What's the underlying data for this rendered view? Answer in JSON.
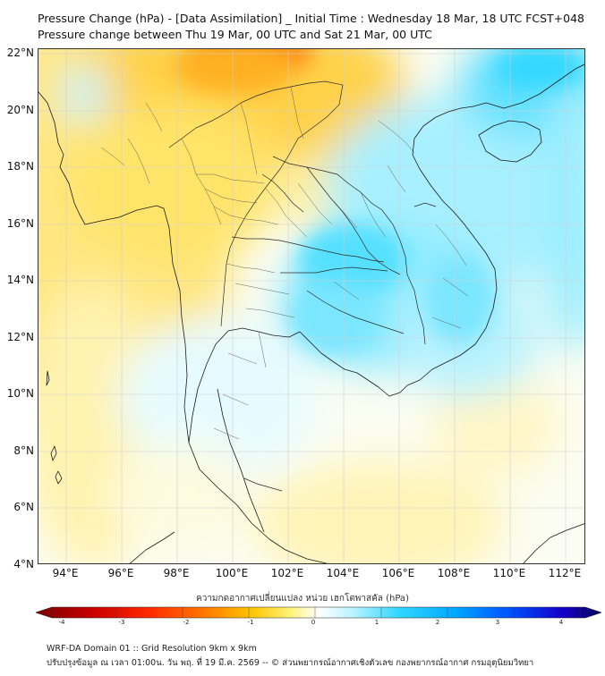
{
  "title_line1": "Pressure Change (hPa) - [Data Assimilation] _ Initial Time : Wednesday 18 Mar, 18 UTC FCST+048",
  "title_line2": "Pressure change between Thu 19 Mar, 00 UTC and Sat 21 Mar, 00 UTC",
  "latitude_labels": [
    "22°N",
    "20°N",
    "18°N",
    "16°N",
    "14°N",
    "12°N",
    "10°N",
    "8°N",
    "6°N",
    "4°N"
  ],
  "longitude_labels": [
    "94°E",
    "96°E",
    "98°E",
    "100°E",
    "102°E",
    "104°E",
    "106°E",
    "108°E",
    "110°E",
    "112°E"
  ],
  "map_extent": {
    "lon_min": 93,
    "lon_max": 112.7,
    "lat_min": 4,
    "lat_max": 22.2
  },
  "colorbar": {
    "title": "ความกดอากาศเปลี่ยนแปลง หน่วย เฮกโตพาสคัล (hPa)",
    "range": [
      -4,
      4
    ],
    "ticks": [
      "-4",
      "-3",
      "-2",
      "-1",
      "0",
      "1",
      "2",
      "3",
      "4"
    ],
    "colors": [
      "#7a0000",
      "#c80000",
      "#ff2a00",
      "#ff7a00",
      "#ffc400",
      "#fff27a",
      "#ffffff",
      "#b8f4ff",
      "#33d8ff",
      "#00a8ff",
      "#0050ff",
      "#1400c8",
      "#0a005a"
    ]
  },
  "footer_line1": "WRF-DA Domain 01 :: Grid Resolution 9km x 9km",
  "footer_line2": "ปรับปรุงข้อมูล ณ เวลา 01:00น. วัน พฤ. ที่ 19 มี.ค. 2569 -- © ส่วนพยากรณ์อากาศเชิงตัวเลข กองพยากรณ์อากาศ กรมอุตุนิยมวิทยา"
}
